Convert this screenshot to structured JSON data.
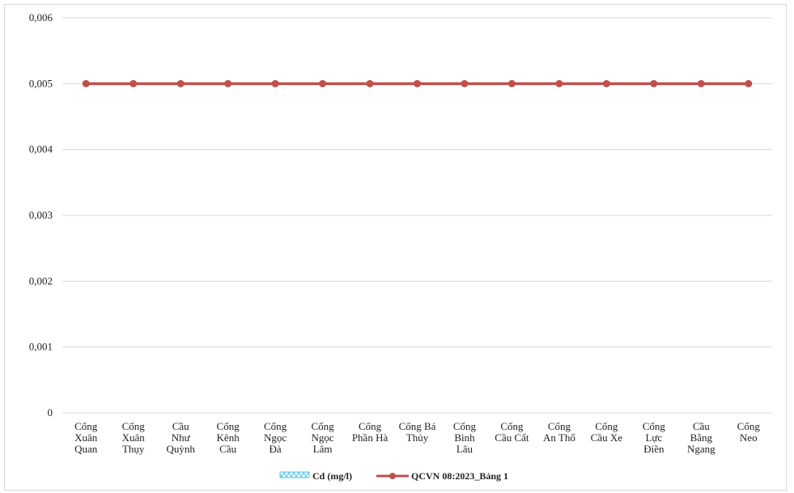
{
  "chart_data": {
    "type": "line",
    "categories": [
      "Cống Xuân Quan",
      "Cống Xuân Thụy",
      "Cầu Như Quỳnh",
      "Cống Kênh Cầu",
      "Cống Ngọc Đà",
      "Cống Ngọc Lâm",
      "Cống Phần Hà",
      "Cống Bá Thủy",
      "Cống Bình Lâu",
      "Cống Cầu Cất",
      "Cống An Thổ",
      "Cống Cầu Xe",
      "Cống Lực Điền",
      "Cầu Bằng Ngang",
      "Cống Neo"
    ],
    "category_lines": [
      [
        "Cống",
        "Xuân",
        "Quan"
      ],
      [
        "Cống",
        "Xuân",
        "Thụy"
      ],
      [
        "Cầu",
        "Như",
        "Quỳnh"
      ],
      [
        "Cống",
        "Kênh",
        "Cầu"
      ],
      [
        "Cống",
        "Ngọc",
        "Đà"
      ],
      [
        "Cống",
        "Ngọc",
        "Lâm"
      ],
      [
        "Cống",
        "Phần Hà"
      ],
      [
        "Cống Bá",
        "Thủy"
      ],
      [
        "Cống",
        "Bình",
        "Lâu"
      ],
      [
        "Cống",
        "Cầu Cất"
      ],
      [
        "Cống",
        "An Thổ"
      ],
      [
        "Cống",
        "Cầu Xe"
      ],
      [
        "Cống",
        "Lực",
        "Điền"
      ],
      [
        "Cầu",
        "Bằng",
        "Ngang"
      ],
      [
        "Cống",
        "Neo"
      ]
    ],
    "series": [
      {
        "name": "Cd (mg/l)",
        "kind": "bar",
        "color": "#5bc8e6",
        "values": [
          0,
          0,
          0,
          0,
          0,
          0,
          0,
          0,
          0,
          0,
          0,
          0,
          0,
          0,
          0
        ]
      },
      {
        "name": "QCVN 08:2023_Bảng 1",
        "kind": "line",
        "color": "#c0504d",
        "values": [
          0.005,
          0.005,
          0.005,
          0.005,
          0.005,
          0.005,
          0.005,
          0.005,
          0.005,
          0.005,
          0.005,
          0.005,
          0.005,
          0.005,
          0.005
        ]
      }
    ],
    "y_ticks": [
      {
        "value": 0,
        "label": "0"
      },
      {
        "value": 0.001,
        "label": "0,001"
      },
      {
        "value": 0.002,
        "label": "0,002"
      },
      {
        "value": 0.003,
        "label": "0,003"
      },
      {
        "value": 0.004,
        "label": "0,004"
      },
      {
        "value": 0.005,
        "label": "0,005"
      },
      {
        "value": 0.006,
        "label": "0,006"
      }
    ],
    "ylim": [
      0,
      0.006
    ],
    "grid": true,
    "legend_position": "bottom"
  }
}
